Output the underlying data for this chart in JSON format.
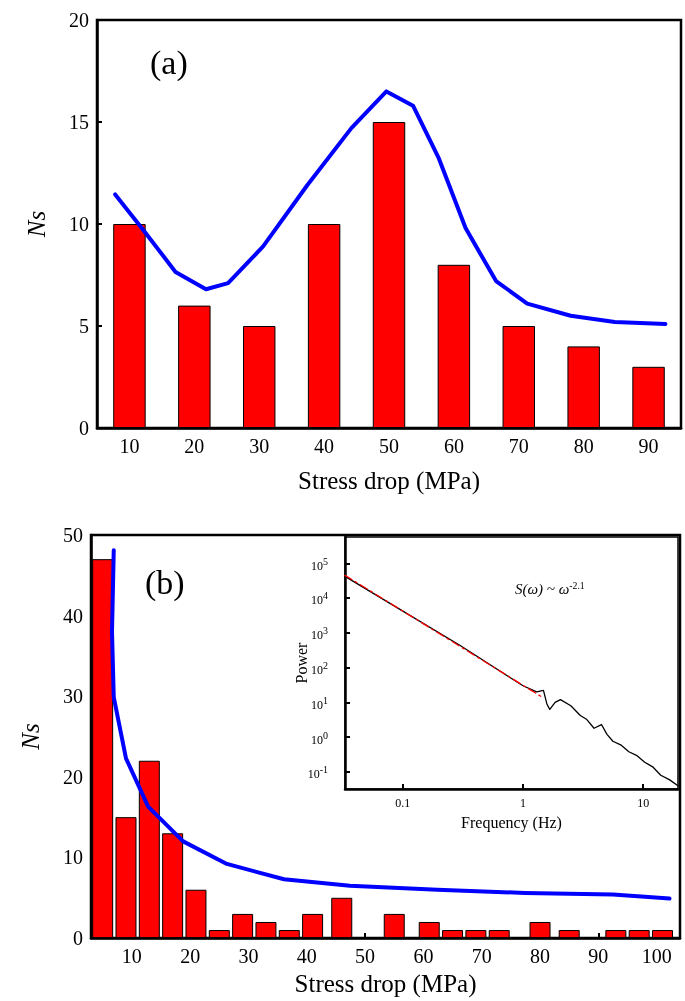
{
  "chart_data": [
    {
      "type": "bar",
      "xlabel": "Stress drop (MPa)",
      "ylabel": "Ns",
      "annotations": [
        "(a)"
      ],
      "xlim": [
        5,
        95
      ],
      "xticks": [
        10,
        20,
        30,
        40,
        50,
        60,
        70,
        80,
        90
      ],
      "ylim": [
        0,
        20
      ],
      "yticks": [
        0,
        5,
        10,
        15,
        20
      ],
      "marker": "none",
      "series": [
        {
          "color": "#ff0000",
          "x": [
            10,
            20,
            30,
            40,
            50,
            60,
            70,
            80,
            90
          ],
          "values": [
            10,
            6,
            5,
            10,
            15,
            8,
            5,
            4,
            3
          ]
        },
        {
          "type": "line",
          "color": "#0000ff",
          "x": [
            7.8,
            12.4,
            17.1,
            21.8,
            25.2,
            30.6,
            37.4,
            44.2,
            49.6,
            53.7,
            57.7,
            61.8,
            66.5,
            71.3,
            78,
            84.8,
            92.6
          ],
          "values": [
            11.45,
            9.6,
            7.65,
            6.8,
            7.1,
            8.9,
            11.9,
            14.7,
            16.5,
            15.8,
            13.2,
            9.8,
            7.2,
            6.1,
            5.5,
            5.2,
            5.1
          ]
        }
      ]
    },
    {
      "type": "bar",
      "xlabel": "Stress drop (MPa)",
      "ylabel": "Ns",
      "annotations": [
        "(b)"
      ],
      "xlim": [
        3,
        104
      ],
      "xticks": [
        10,
        20,
        30,
        40,
        50,
        60,
        70,
        80,
        90,
        100
      ],
      "ylim": [
        0,
        50
      ],
      "yticks": [
        0,
        10,
        20,
        30,
        40,
        50
      ],
      "marker": "none",
      "series": [
        {
          "color": "#ff0000",
          "x": [
            5,
            9,
            13,
            17,
            21,
            25,
            29,
            33,
            37,
            41,
            46,
            55,
            61,
            65,
            69,
            73,
            80,
            85,
            93,
            97,
            101
          ],
          "values": [
            47,
            15,
            22,
            13,
            6,
            1,
            3,
            2,
            1,
            3,
            5,
            3,
            2,
            1,
            1,
            1,
            2,
            1,
            1,
            1,
            1
          ]
        },
        {
          "type": "line",
          "color": "#0000ff",
          "x": [
            6.9,
            6.6,
            6.9,
            9,
            12.8,
            18.8,
            26.3,
            36.1,
            47.4,
            62.4,
            77.4,
            92.5,
            102.2
          ],
          "values": [
            48.1,
            38,
            29.9,
            22.3,
            16.3,
            12,
            9.2,
            7.3,
            6.5,
            6,
            5.6,
            5.4,
            4.9
          ]
        }
      ]
    },
    {
      "type": "line",
      "xlabel": "Frequency (Hz)",
      "ylabel": "Power",
      "annotations": [
        "S(ω) ~ ω$^{-2.1}$"
      ],
      "log": "xy",
      "xlim": [
        0.033,
        19.5
      ],
      "xticks": [
        0.1,
        1,
        10
      ],
      "ylim": [
        0.032,
        570000
      ],
      "yticks": [
        {
          "value": 0.1,
          "label": "10$^{-1}$"
        },
        {
          "value": 1,
          "label": "10$^{0}$"
        },
        {
          "value": 10,
          "label": "10$^{1}$"
        },
        {
          "value": 100,
          "label": "10$^{2}$"
        },
        {
          "value": 1000,
          "label": "10$^{3}$"
        },
        {
          "value": 10000,
          "label": "10$^{4}$"
        },
        {
          "value": 100000,
          "label": "10$^{5}$"
        }
      ],
      "marker": "none",
      "series": [
        {
          "color": "#000000",
          "line_style": "solid",
          "x": [
            0.033,
            0.1,
            0.3,
            1,
            1.3,
            1.48,
            1.58,
            1.67,
            1.85,
            2.05,
            2.5,
            3,
            3.4,
            3.9,
            4.5,
            5,
            5.6,
            6.5,
            7.6,
            8.8,
            10.3,
            12,
            14,
            16.5,
            19.5
          ],
          "values": [
            42000,
            4200,
            430,
            30,
            20,
            22,
            9,
            6.3,
            10,
            12,
            8,
            4.2,
            3.2,
            1.8,
            2.3,
            1.2,
            0.76,
            0.6,
            0.38,
            0.3,
            0.19,
            0.14,
            0.08,
            0.06,
            0.04
          ]
        },
        {
          "color": "#ff0000",
          "line_style": "dashed",
          "x": [
            0.033,
            1.45
          ],
          "values": [
            45000,
            14
          ]
        }
      ]
    }
  ]
}
